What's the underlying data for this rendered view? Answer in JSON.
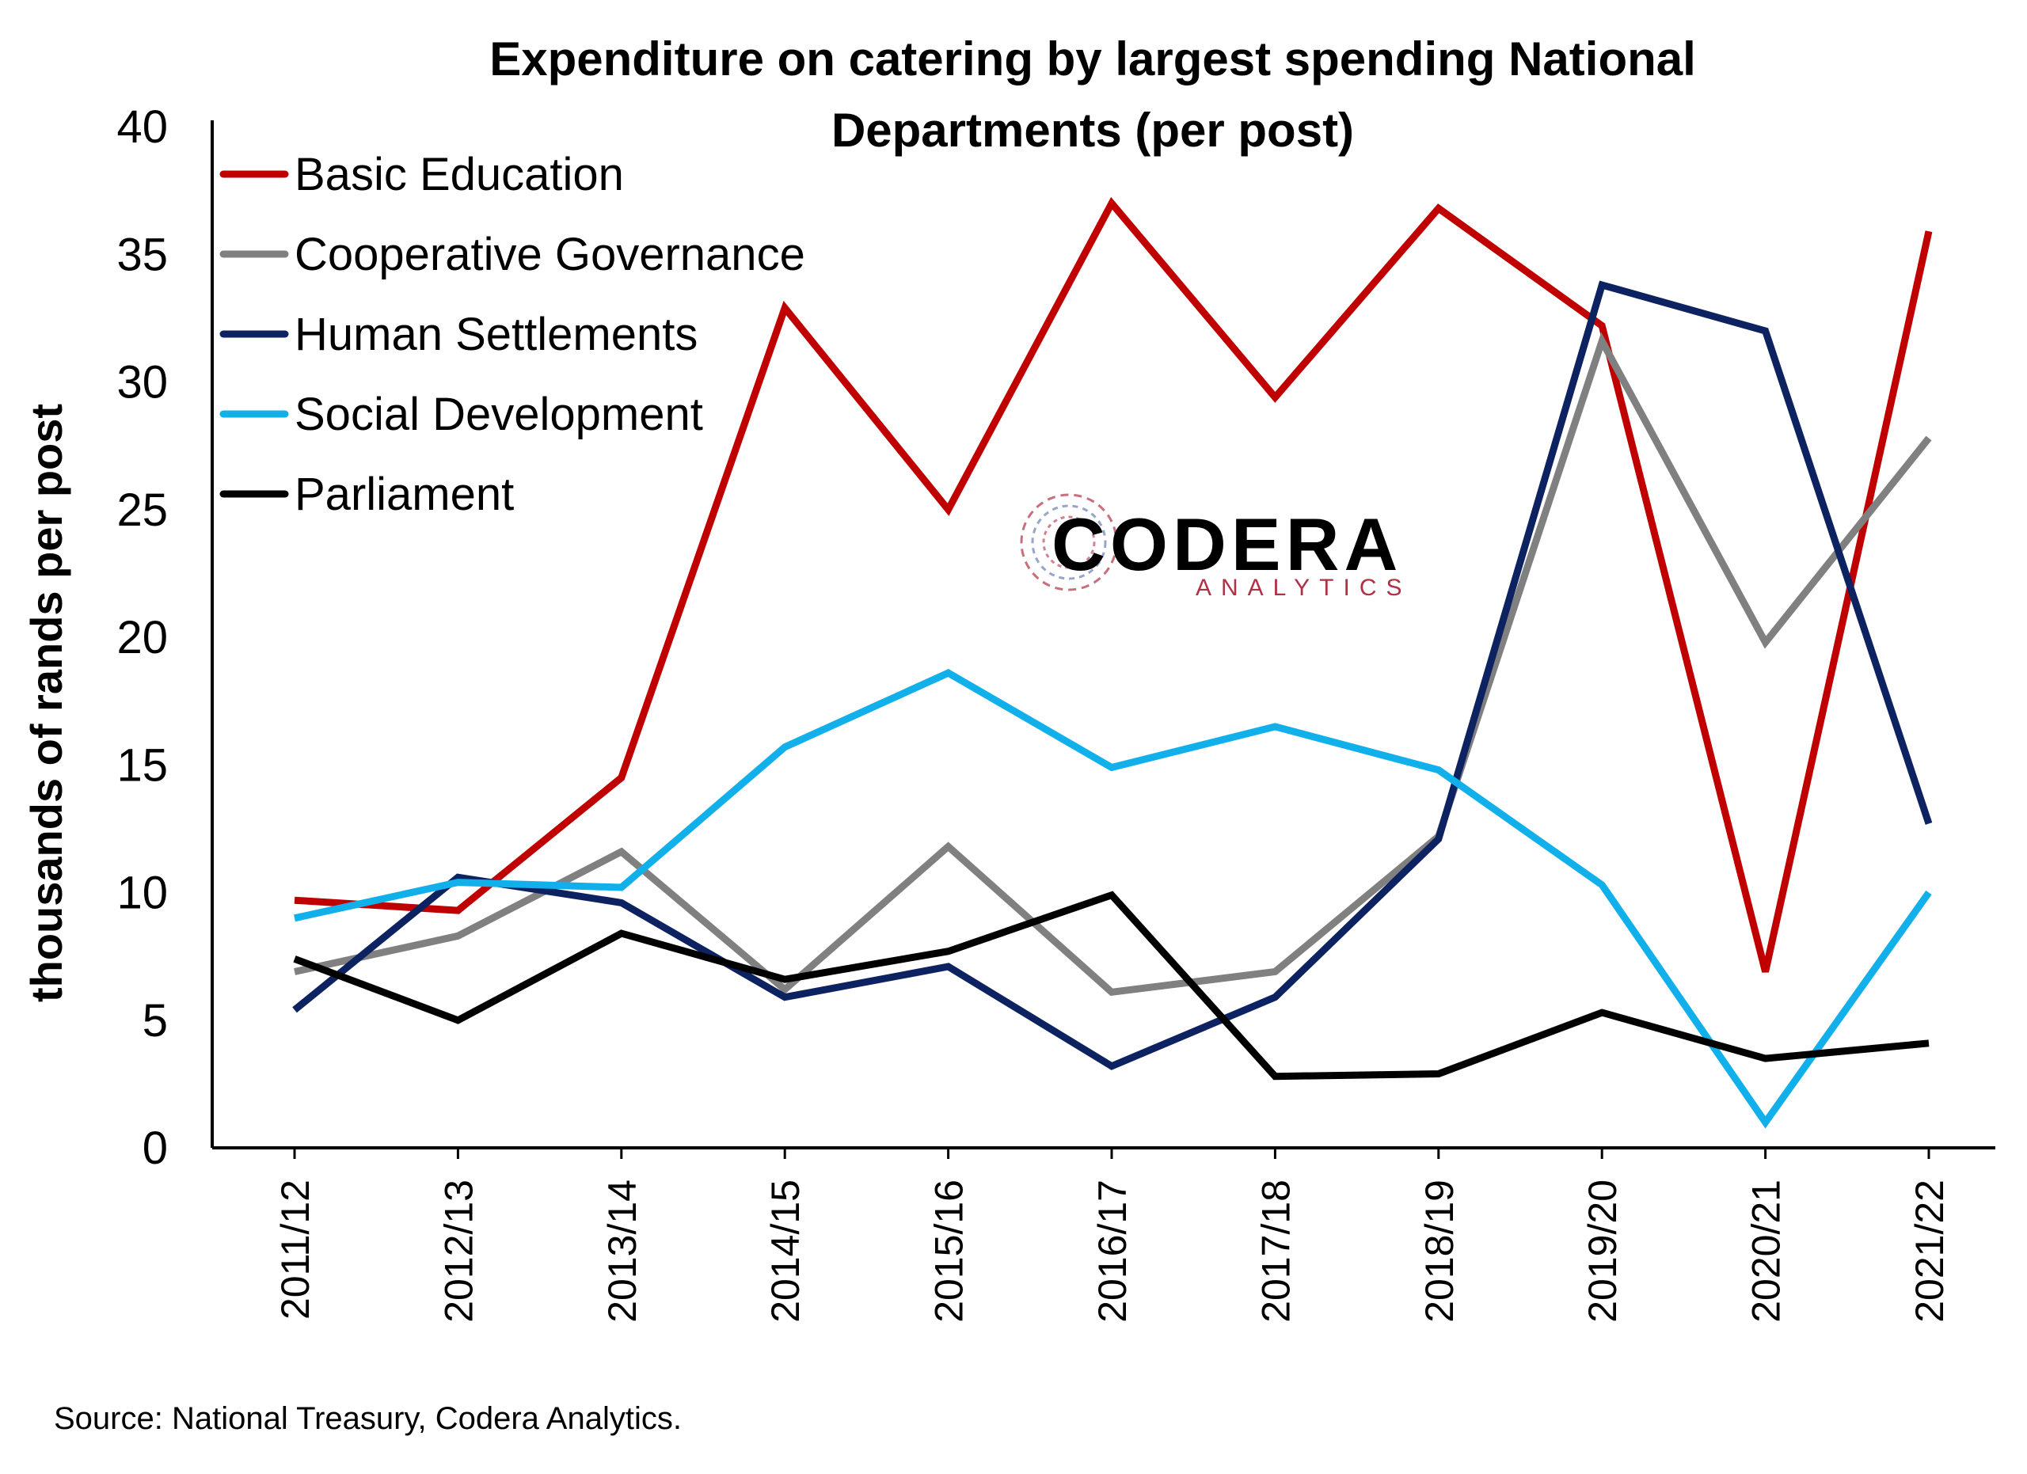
{
  "chart_data": {
    "type": "line",
    "title_line1": "Expenditure on catering by largest spending National",
    "title_line2": "Departments (per post)",
    "ylabel": "thousands of rands per post",
    "ylim": [
      0,
      40
    ],
    "yticks": [
      "0",
      "5",
      "10",
      "15",
      "20",
      "25",
      "30",
      "35",
      "40"
    ],
    "categories": [
      "2011/12",
      "2012/13",
      "2013/14",
      "2014/15",
      "2015/16",
      "2016/17",
      "2017/18",
      "2018/19",
      "2019/20",
      "2020/21",
      "2021/22"
    ],
    "legend_position": "top-left",
    "grid": false,
    "series": [
      {
        "name": "Basic Education",
        "color": "#c00000",
        "values": [
          9.7,
          9.3,
          14.5,
          32.9,
          25.0,
          37.0,
          29.4,
          36.8,
          32.2,
          6.9,
          35.9
        ]
      },
      {
        "name": "Cooperative Governance",
        "color": "#808080",
        "values": [
          6.9,
          8.3,
          11.6,
          6.2,
          11.8,
          6.1,
          6.9,
          12.2,
          31.6,
          19.8,
          27.8
        ]
      },
      {
        "name": "Human Settlements",
        "color": "#0d2261",
        "values": [
          5.4,
          10.6,
          9.6,
          5.9,
          7.1,
          3.2,
          5.9,
          12.1,
          33.8,
          32.0,
          12.7
        ]
      },
      {
        "name": "Social Development",
        "color": "#12b0ea",
        "values": [
          9.0,
          10.4,
          10.2,
          15.7,
          18.6,
          14.9,
          16.5,
          14.8,
          10.3,
          1.0,
          10.0
        ]
      },
      {
        "name": "Parliament",
        "color": "#000000",
        "values": [
          7.4,
          5.0,
          8.4,
          6.6,
          7.7,
          9.9,
          2.8,
          2.9,
          5.3,
          3.5,
          4.1
        ]
      }
    ]
  },
  "logo": {
    "main": "CODERA",
    "sub": "ANALYTICS"
  },
  "source": "Source: National Treasury, Codera Analytics."
}
